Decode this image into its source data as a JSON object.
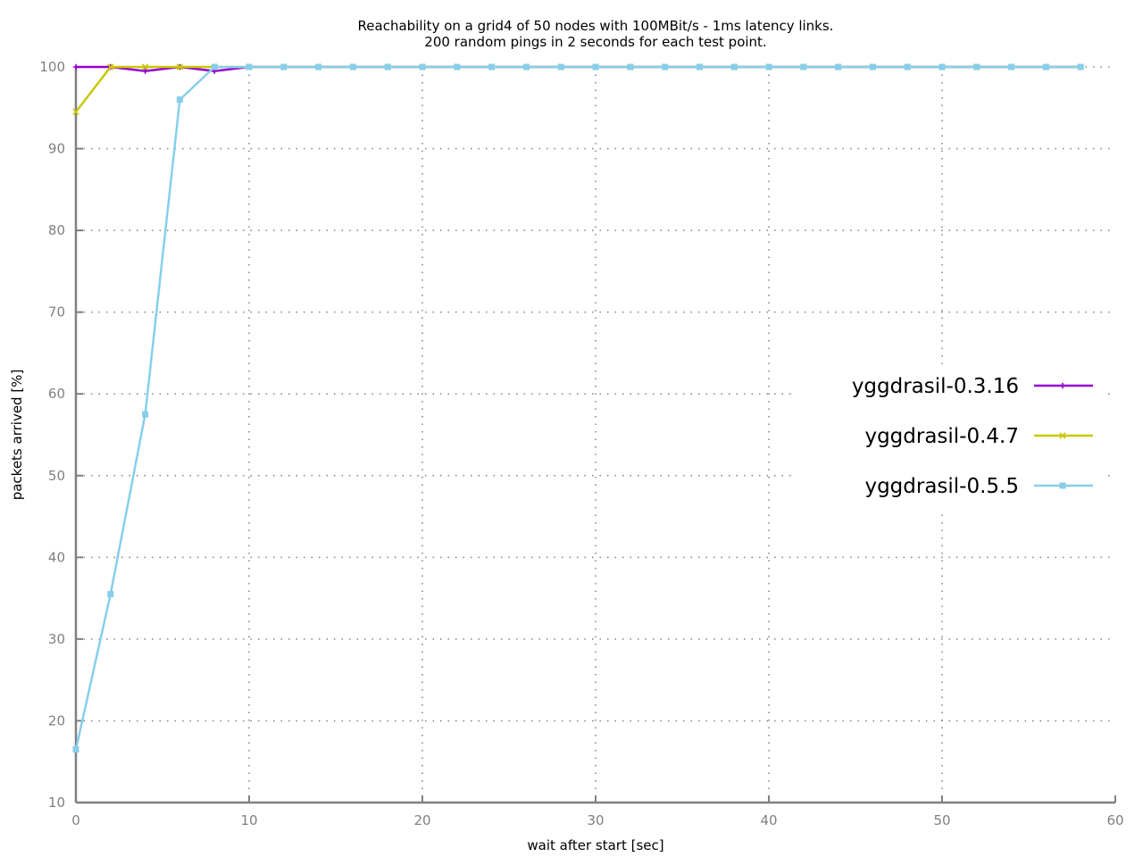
{
  "chart_data": {
    "type": "line",
    "title_line1": "Reachability on a grid4 of 50 nodes with 100MBit/s - 1ms latency links.",
    "title_line2": "200 random pings in 2 seconds for each test point.",
    "xlabel": "wait after start [sec]",
    "ylabel": "packets arrived [%]",
    "xlim": [
      0,
      60
    ],
    "ylim": [
      10,
      100
    ],
    "xticks": [
      0,
      10,
      20,
      30,
      40,
      50,
      60
    ],
    "yticks": [
      10,
      20,
      30,
      40,
      50,
      60,
      70,
      80,
      90,
      100
    ],
    "grid": true,
    "legend_position": "right",
    "series": [
      {
        "name": "yggdrasil-0.3.16",
        "color": "#9400d3",
        "marker": "plus",
        "x": [
          0,
          2,
          4,
          6,
          8,
          10,
          12,
          14,
          16,
          18,
          20,
          22,
          24,
          26,
          28,
          30,
          32,
          34,
          36,
          38,
          40,
          42,
          44,
          46,
          48,
          50,
          52,
          54,
          56,
          58
        ],
        "y": [
          100,
          100,
          99.5,
          100,
          99.5,
          100,
          100,
          100,
          100,
          100,
          100,
          100,
          100,
          100,
          100,
          100,
          100,
          100,
          100,
          100,
          100,
          100,
          100,
          100,
          100,
          100,
          100,
          100,
          100,
          100
        ]
      },
      {
        "name": "yggdrasil-0.4.7",
        "color": "#c8c800",
        "marker": "cross",
        "x": [
          0,
          2,
          4,
          6,
          8,
          10,
          12,
          14,
          16,
          18,
          20,
          22,
          24,
          26,
          28,
          30,
          32,
          34,
          36,
          38,
          40,
          42,
          44,
          46,
          48,
          50,
          52,
          54,
          56,
          58
        ],
        "y": [
          94.5,
          100,
          100,
          100,
          100,
          100,
          100,
          100,
          100,
          100,
          100,
          100,
          100,
          100,
          100,
          100,
          100,
          100,
          100,
          100,
          100,
          100,
          100,
          100,
          100,
          100,
          100,
          100,
          100,
          100
        ]
      },
      {
        "name": "yggdrasil-0.5.5",
        "color": "#87ceeb",
        "marker": "square",
        "x": [
          0,
          2,
          4,
          6,
          8,
          10,
          12,
          14,
          16,
          18,
          20,
          22,
          24,
          26,
          28,
          30,
          32,
          34,
          36,
          38,
          40,
          42,
          44,
          46,
          48,
          50,
          52,
          54,
          56,
          58
        ],
        "y": [
          16.5,
          35.5,
          57.5,
          96,
          100,
          100,
          100,
          100,
          100,
          100,
          100,
          100,
          100,
          100,
          100,
          100,
          100,
          100,
          100,
          100,
          100,
          100,
          100,
          100,
          100,
          100,
          100,
          100,
          100,
          100
        ]
      }
    ]
  }
}
